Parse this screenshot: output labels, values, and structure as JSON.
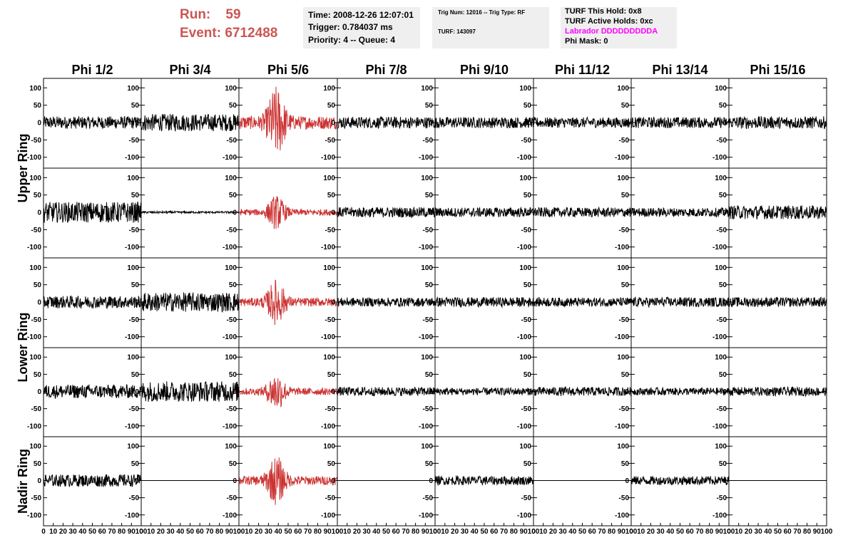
{
  "header": {
    "run_label": "Run:",
    "run_value": "59",
    "event_label": "Event:",
    "event_value": "6712488",
    "title_color": "#cc5555"
  },
  "info_time": {
    "time": "Time: 2008-12-26 12:07:01",
    "trigger": "Trigger: 0.784037 ms",
    "priority": "Priority: 4 -- Queue: 4"
  },
  "info_turf": {
    "trig": "Trig Num: 12016 -- Trig Type: RF",
    "turf": "TURF: 143097"
  },
  "info_holds": {
    "this_hold": "TURF This Hold: 0x8",
    "active_holds": "TURF Active Holds: 0xc",
    "labrador": "Labrador DDDDDDDDDA",
    "labrador_color": "#ff00ff",
    "phi_mask": "Phi Mask: 0"
  },
  "chart_data": {
    "type": "line",
    "columns": [
      "Phi 1/2",
      "Phi 3/4",
      "Phi 5/6",
      "Phi 7/8",
      "Phi 9/10",
      "Phi 11/12",
      "Phi 13/14",
      "Phi 15/16"
    ],
    "row_groups": [
      {
        "label": "Upper Ring",
        "rows": 2
      },
      {
        "label": "Lower Ring",
        "rows": 2
      },
      {
        "label": "Nadir Ring",
        "rows": 1
      }
    ],
    "xlim": [
      0,
      100
    ],
    "ylim": [
      -115,
      115
    ],
    "y_ticks": [
      -100,
      -50,
      0,
      50,
      100
    ],
    "x_tick_labels": [
      "0",
      "10",
      "20",
      "30",
      "40",
      "50",
      "60",
      "70",
      "80",
      "90",
      "100"
    ],
    "highlight_column": 2,
    "highlight_color": "#cc3333",
    "trace_color": "#000000",
    "series": [
      {
        "name": "",
        "amps": [
          18,
          25,
          55,
          17,
          16,
          15,
          16,
          18
        ]
      },
      {
        "name": "",
        "amps": [
          30,
          3,
          26,
          15,
          14,
          14,
          13,
          20
        ]
      },
      {
        "name": "",
        "amps": [
          18,
          28,
          35,
          13,
          14,
          13,
          14,
          14
        ]
      },
      {
        "name": "",
        "amps": [
          20,
          30,
          30,
          13,
          11,
          13,
          11,
          13
        ]
      },
      {
        "name": "",
        "amps": [
          18,
          0,
          38,
          0,
          13,
          0,
          13,
          0
        ]
      }
    ]
  }
}
